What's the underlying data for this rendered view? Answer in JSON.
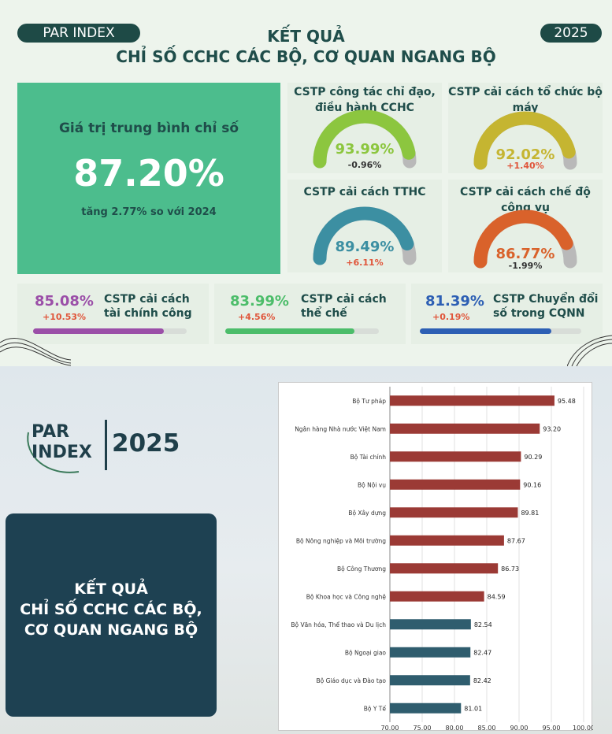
{
  "header": {
    "badge_left": "PAR INDEX",
    "badge_right": "2025",
    "title_line1": "KẾT QUẢ",
    "title_line2": "CHỈ SỐ CCHC CÁC BỘ, CƠ QUAN NGANG BỘ"
  },
  "average": {
    "label": "Giá trị trung bình chỉ số",
    "value": "87.20%",
    "change": "tăng 2.77% so với 2024"
  },
  "gauges": [
    {
      "title": "CSTP công tác chỉ đạo, điều hành CCHC",
      "value": "93.99%",
      "delta": "-0.96%",
      "fraction": 0.9399,
      "color": "#8cc63f",
      "value_color": "#8cc63f",
      "delta_color": "#333333"
    },
    {
      "title": "CSTP cải cách tổ chức bộ máy",
      "value": "92.02%",
      "delta": "+1.40%",
      "fraction": 0.9202,
      "color": "#c5b531",
      "value_color": "#c5b531",
      "delta_color": "#e0553a"
    },
    {
      "title": "CSTP cải cách TTHC",
      "value": "89.49%",
      "delta": "+6.11%",
      "fraction": 0.8949,
      "color": "#3c8fa2",
      "value_color": "#3c8fa2",
      "delta_color": "#e0553a"
    },
    {
      "title": "CSTP cải cách chế độ công vụ",
      "value": "86.77%",
      "delta": "-1.99%",
      "fraction": 0.8677,
      "color": "#d9622b",
      "value_color": "#d9622b",
      "delta_color": "#333333"
    }
  ],
  "bar_cards": [
    {
      "value": "85.08%",
      "delta": "+10.53%",
      "label_line1": "CSTP cải cách",
      "label_line2": "tài chính công",
      "fraction": 0.8508,
      "color": "#9b4fa8"
    },
    {
      "value": "83.99%",
      "delta": "+4.56%",
      "label_line1": "CSTP cải cách",
      "label_line2": "thể chế",
      "fraction": 0.8399,
      "color": "#4cbd6a"
    },
    {
      "value": "81.39%",
      "delta": "+0.19%",
      "label_line1": "CSTP Chuyển đổi",
      "label_line2": "số trong CQNN",
      "fraction": 0.8139,
      "color": "#2d5fb4"
    }
  ],
  "bottom": {
    "logo_par": "PAR",
    "logo_index": "INDEX",
    "logo_year": "2025",
    "card_line1": "KẾT QUẢ",
    "card_line2": "CHỈ SỐ CCHC CÁC BỘ,",
    "card_line3": "CƠ QUAN NGANG BỘ"
  },
  "chart_data": {
    "type": "bar",
    "orientation": "horizontal",
    "categories": [
      "Bộ Tư pháp",
      "Ngân hàng Nhà nước Việt Nam",
      "Bộ Tài chính",
      "Bộ Nội vụ",
      "Bộ Xây dựng",
      "Bộ Nông nghiệp và Môi trường",
      "Bộ Công Thương",
      "Bộ Khoa học và Công nghệ",
      "Bộ Văn hóa, Thể thao và Du lịch",
      "Bộ Ngoại giao",
      "Bộ Giáo dục và Đào tạo",
      "Bộ Y Tế"
    ],
    "values": [
      95.48,
      93.2,
      90.29,
      90.16,
      89.81,
      87.67,
      86.73,
      84.59,
      82.54,
      82.47,
      82.42,
      81.01
    ],
    "value_labels": [
      "95.48",
      "93.20",
      "90.29",
      "90.16",
      "89.81",
      "87.67",
      "86.73",
      "84.59",
      "82.54",
      "82.47",
      "82.42",
      "81.01"
    ],
    "bar_colors": [
      "#9b3a35",
      "#9b3a35",
      "#9b3a35",
      "#9b3a35",
      "#9b3a35",
      "#9b3a35",
      "#9b3a35",
      "#9b3a35",
      "#2f5d6e",
      "#2f5d6e",
      "#2f5d6e",
      "#2f5d6e"
    ],
    "xlim": [
      70,
      100
    ],
    "xticks": [
      "70.00",
      "75.00",
      "80.00",
      "85.00",
      "90.00",
      "95.00",
      "100.00"
    ],
    "grid": true,
    "title": "",
    "xlabel": "",
    "ylabel": ""
  }
}
